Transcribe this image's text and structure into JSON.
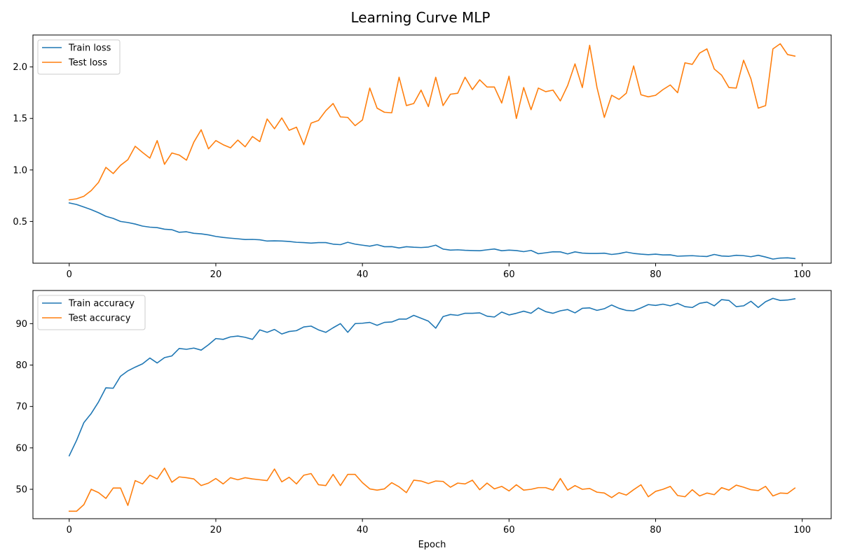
{
  "figure": {
    "title": "Learning Curve MLP"
  },
  "chart_data": [
    {
      "type": "line",
      "name": "loss",
      "x_ticks": [
        0,
        20,
        40,
        60,
        80,
        100
      ],
      "y_ticks": [
        0.5,
        1.0,
        1.5,
        2.0
      ],
      "y_tick_labels": [
        "0.5",
        "1.0",
        "1.5",
        "2.0"
      ],
      "xlim": [
        -4.95,
        103.95
      ],
      "ylim": [
        0.095,
        2.31
      ],
      "xlabel": "",
      "ylabel": "",
      "grid": false,
      "legend": "upper-left",
      "series": [
        {
          "name": "Train loss",
          "color": "#1f77b4",
          "values": [
            0.68,
            0.665,
            0.64,
            0.615,
            0.585,
            0.55,
            0.53,
            0.5,
            0.49,
            0.475,
            0.455,
            0.445,
            0.44,
            0.425,
            0.42,
            0.395,
            0.4,
            0.385,
            0.38,
            0.37,
            0.355,
            0.345,
            0.338,
            0.332,
            0.325,
            0.326,
            0.322,
            0.31,
            0.312,
            0.31,
            0.306,
            0.298,
            0.295,
            0.29,
            0.295,
            0.295,
            0.28,
            0.275,
            0.298,
            0.28,
            0.27,
            0.26,
            0.275,
            0.255,
            0.256,
            0.243,
            0.255,
            0.25,
            0.247,
            0.252,
            0.27,
            0.232,
            0.222,
            0.225,
            0.22,
            0.218,
            0.216,
            0.225,
            0.233,
            0.216,
            0.222,
            0.218,
            0.207,
            0.219,
            0.187,
            0.196,
            0.206,
            0.205,
            0.185,
            0.205,
            0.193,
            0.19,
            0.19,
            0.192,
            0.18,
            0.188,
            0.203,
            0.19,
            0.183,
            0.178,
            0.183,
            0.175,
            0.176,
            0.163,
            0.166,
            0.168,
            0.163,
            0.16,
            0.18,
            0.165,
            0.162,
            0.172,
            0.168,
            0.158,
            0.172,
            0.155,
            0.135,
            0.145,
            0.147,
            0.14
          ]
        },
        {
          "name": "Test loss",
          "color": "#ff7f0e",
          "values": [
            0.71,
            0.72,
            0.745,
            0.8,
            0.88,
            1.025,
            0.965,
            1.045,
            1.1,
            1.23,
            1.17,
            1.115,
            1.285,
            1.055,
            1.165,
            1.145,
            1.095,
            1.27,
            1.39,
            1.205,
            1.285,
            1.245,
            1.215,
            1.29,
            1.225,
            1.325,
            1.275,
            1.495,
            1.4,
            1.505,
            1.385,
            1.415,
            1.245,
            1.455,
            1.48,
            1.575,
            1.645,
            1.515,
            1.51,
            1.43,
            1.485,
            1.795,
            1.6,
            1.56,
            1.555,
            1.9,
            1.625,
            1.645,
            1.775,
            1.615,
            1.9,
            1.625,
            1.735,
            1.745,
            1.9,
            1.78,
            1.875,
            1.805,
            1.805,
            1.65,
            1.91,
            1.5,
            1.8,
            1.585,
            1.795,
            1.76,
            1.775,
            1.67,
            1.82,
            2.03,
            1.8,
            2.21,
            1.8,
            1.51,
            1.725,
            1.685,
            1.745,
            2.01,
            1.73,
            1.71,
            1.725,
            1.78,
            1.825,
            1.75,
            2.04,
            2.025,
            2.135,
            2.175,
            1.98,
            1.92,
            1.8,
            1.795,
            2.065,
            1.885,
            1.6,
            1.625,
            2.175,
            2.225,
            2.12,
            2.105
          ]
        }
      ]
    },
    {
      "type": "line",
      "name": "accuracy",
      "x_ticks": [
        0,
        20,
        40,
        60,
        80,
        100
      ],
      "y_ticks": [
        50,
        60,
        70,
        80,
        90
      ],
      "y_tick_labels": [
        "50",
        "60",
        "70",
        "80",
        "90"
      ],
      "xlim": [
        -4.95,
        103.95
      ],
      "ylim": [
        42.9,
        98.0
      ],
      "xlabel": "Epoch",
      "ylabel": "",
      "grid": false,
      "legend": "upper-left",
      "series": [
        {
          "name": "Train accuracy",
          "color": "#1f77b4",
          "values": [
            58.1,
            61.8,
            66.1,
            68.3,
            71.1,
            74.5,
            74.4,
            77.3,
            78.6,
            79.5,
            80.3,
            81.7,
            80.5,
            81.8,
            82.2,
            84.0,
            83.8,
            84.1,
            83.6,
            84.9,
            86.4,
            86.2,
            86.8,
            87.0,
            86.7,
            86.2,
            88.5,
            87.9,
            88.6,
            87.5,
            88.1,
            88.3,
            89.2,
            89.4,
            88.5,
            87.9,
            89.0,
            90.0,
            87.9,
            90.0,
            90.1,
            90.3,
            89.6,
            90.3,
            90.4,
            91.1,
            91.1,
            92.0,
            91.3,
            90.6,
            88.9,
            91.7,
            92.2,
            92.0,
            92.5,
            92.5,
            92.6,
            91.8,
            91.6,
            92.8,
            92.1,
            92.5,
            93.0,
            92.5,
            93.8,
            92.9,
            92.5,
            93.1,
            93.4,
            92.6,
            93.7,
            93.8,
            93.2,
            93.6,
            94.5,
            93.7,
            93.2,
            93.1,
            93.8,
            94.6,
            94.4,
            94.7,
            94.3,
            94.9,
            94.1,
            93.9,
            94.9,
            95.2,
            94.3,
            95.8,
            95.6,
            94.1,
            94.3,
            95.4,
            93.9,
            95.3,
            96.1,
            95.6,
            95.7,
            96.0
          ]
        },
        {
          "name": "Test accuracy",
          "color": "#ff7f0e",
          "values": [
            44.7,
            44.7,
            46.3,
            50.0,
            49.2,
            47.8,
            50.3,
            50.3,
            46.1,
            52.1,
            51.3,
            53.4,
            52.5,
            55.1,
            51.7,
            53.0,
            52.8,
            52.5,
            50.9,
            51.5,
            52.6,
            51.3,
            52.8,
            52.3,
            52.8,
            52.5,
            52.3,
            52.1,
            54.9,
            51.8,
            52.9,
            51.3,
            53.4,
            53.8,
            51.1,
            50.9,
            53.6,
            50.9,
            53.6,
            53.6,
            51.6,
            50.1,
            49.8,
            50.1,
            51.6,
            50.6,
            49.2,
            52.2,
            52.0,
            51.4,
            52.0,
            51.9,
            50.5,
            51.5,
            51.3,
            52.2,
            49.9,
            51.5,
            50.1,
            50.7,
            49.6,
            51.1,
            49.8,
            50.0,
            50.4,
            50.4,
            49.8,
            52.6,
            49.8,
            50.9,
            50.0,
            50.2,
            49.3,
            49.1,
            48.0,
            49.2,
            48.6,
            49.9,
            51.1,
            48.2,
            49.5,
            50.0,
            50.7,
            48.5,
            48.2,
            49.9,
            48.4,
            49.1,
            48.7,
            50.4,
            49.8,
            51.0,
            50.5,
            49.9,
            49.7,
            50.7,
            48.4,
            49.1,
            49.0,
            50.3
          ]
        }
      ]
    }
  ]
}
